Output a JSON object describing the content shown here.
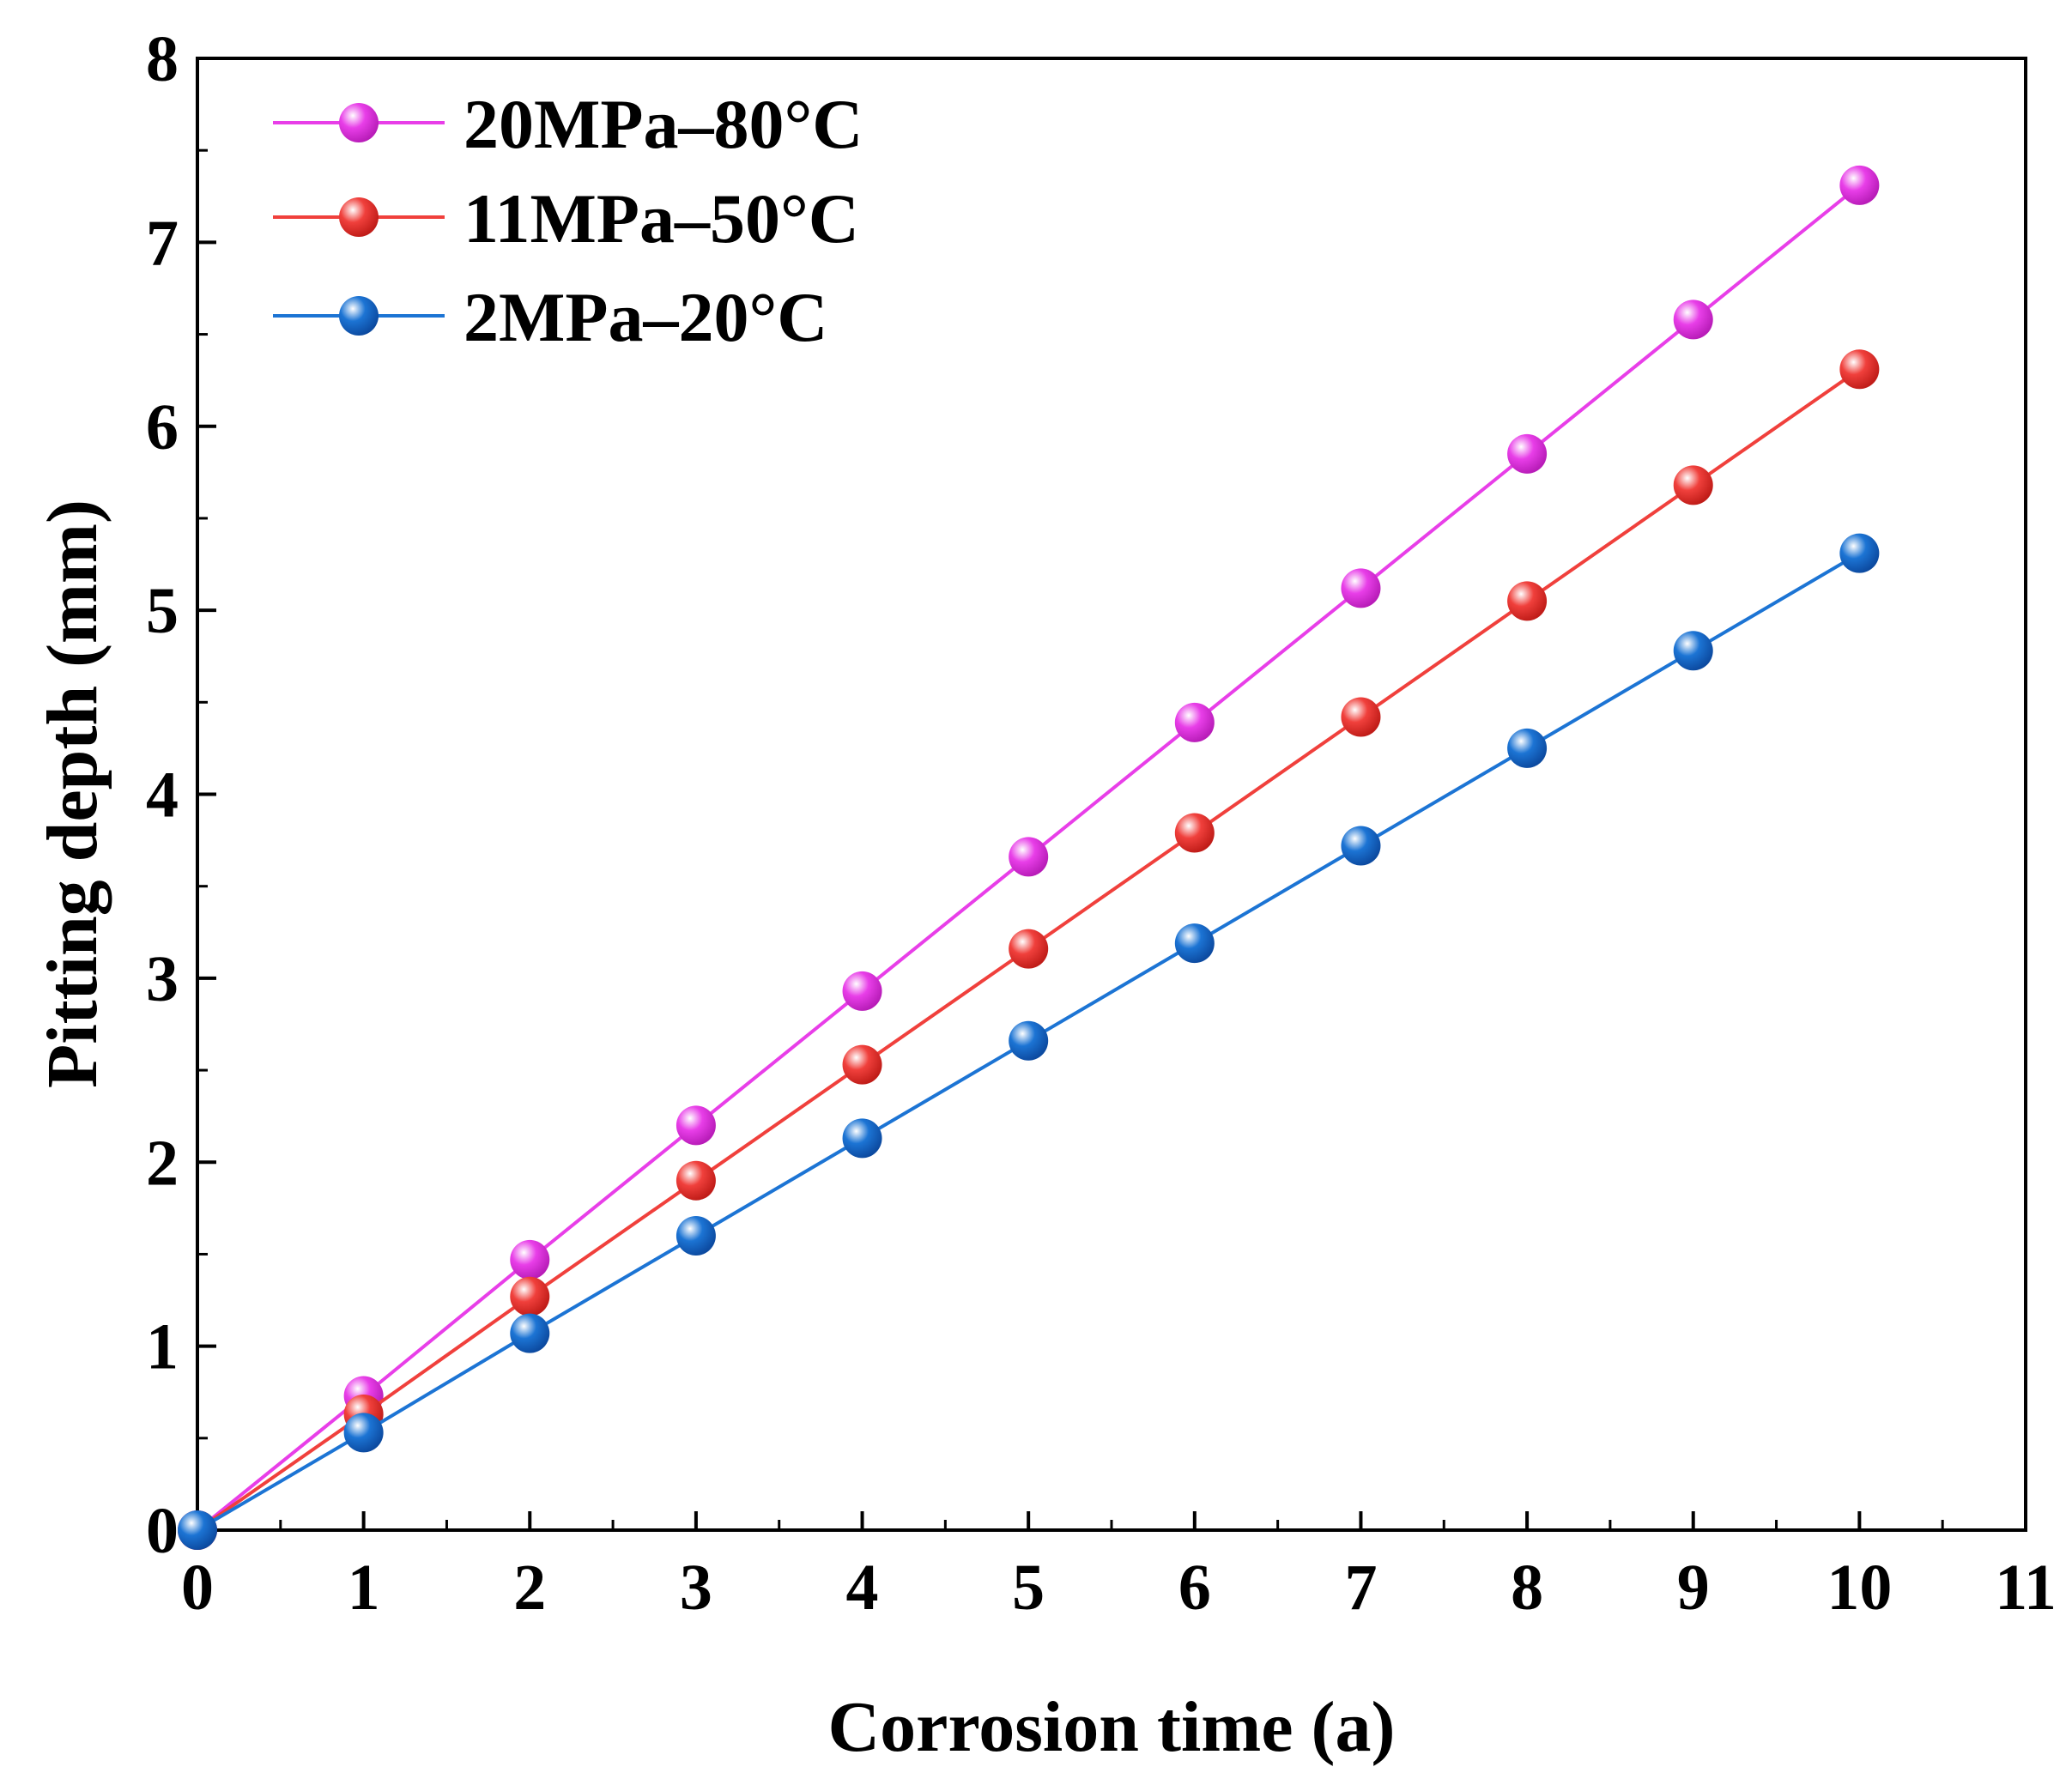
{
  "chart_data": {
    "type": "line",
    "title": "",
    "xlabel": "Corrosion time (a)",
    "ylabel": "Pitting depth (mm)",
    "xlim": [
      0,
      11
    ],
    "ylim": [
      0,
      8
    ],
    "xticks": [
      "0",
      "1",
      "2",
      "3",
      "4",
      "5",
      "6",
      "7",
      "8",
      "9",
      "10",
      "11"
    ],
    "yticks": [
      "0",
      "1",
      "2",
      "3",
      "4",
      "5",
      "6",
      "7",
      "8"
    ],
    "grid": false,
    "legend_position": "top-left",
    "x": [
      0,
      1,
      2,
      3,
      4,
      5,
      6,
      7,
      8,
      9,
      10
    ],
    "series": [
      {
        "name": "20MPa–80°C",
        "color": "#e83ee8",
        "values": [
          0,
          0.73,
          1.47,
          2.2,
          2.93,
          3.66,
          4.39,
          5.12,
          5.85,
          6.58,
          7.31
        ]
      },
      {
        "name": "11MPa–50°C",
        "color": "#f0403c",
        "values": [
          0,
          0.63,
          1.27,
          1.9,
          2.53,
          3.16,
          3.79,
          4.42,
          5.05,
          5.68,
          6.31
        ]
      },
      {
        "name": "2MPa–20°C",
        "color": "#1c74d4",
        "values": [
          0,
          0.53,
          1.07,
          1.6,
          2.13,
          2.66,
          3.19,
          3.72,
          4.25,
          4.78,
          5.31
        ]
      }
    ]
  }
}
